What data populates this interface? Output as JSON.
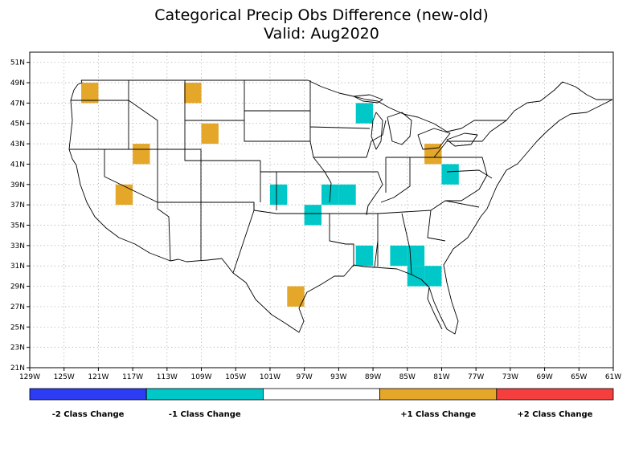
{
  "title": "Categorical Precip Obs Difference (new-old)",
  "subtitle": "Valid: Aug2020",
  "map": {
    "lon_range": [
      -129,
      -61
    ],
    "lat_range": [
      21,
      52
    ],
    "lon_ticks": [
      "129W",
      "125W",
      "121W",
      "117W",
      "113W",
      "109W",
      "105W",
      "101W",
      "97W",
      "93W",
      "89W",
      "85W",
      "81W",
      "77W",
      "73W",
      "69W",
      "65W",
      "61W"
    ],
    "lat_ticks": [
      "21N",
      "23N",
      "25N",
      "27N",
      "29N",
      "31N",
      "33N",
      "35N",
      "37N",
      "39N",
      "41N",
      "43N",
      "45N",
      "47N",
      "49N",
      "51N"
    ],
    "grid": "dotted",
    "cells": [
      {
        "lon": -122,
        "lat": 48,
        "change": 1
      },
      {
        "lon": -110,
        "lat": 48,
        "change": 1
      },
      {
        "lon": -108,
        "lat": 44,
        "change": 1
      },
      {
        "lon": -116,
        "lat": 42,
        "change": 1
      },
      {
        "lon": -118,
        "lat": 38,
        "change": 1
      },
      {
        "lon": -98,
        "lat": 28,
        "change": 1
      },
      {
        "lon": -82,
        "lat": 42,
        "change": 1
      },
      {
        "lon": -90,
        "lat": 46,
        "change": -1
      },
      {
        "lon": -80,
        "lat": 40,
        "change": -1
      },
      {
        "lon": -100,
        "lat": 38,
        "change": -1
      },
      {
        "lon": -94,
        "lat": 38,
        "change": -1
      },
      {
        "lon": -92,
        "lat": 38,
        "change": -1
      },
      {
        "lon": -96,
        "lat": 36,
        "change": -1
      },
      {
        "lon": -90,
        "lat": 32,
        "change": -1
      },
      {
        "lon": -86,
        "lat": 32,
        "change": -1
      },
      {
        "lon": -84,
        "lat": 32,
        "change": -1
      },
      {
        "lon": -84,
        "lat": 30,
        "change": -1
      },
      {
        "lon": -82,
        "lat": 30,
        "change": -1
      }
    ]
  },
  "legend": {
    "colors": {
      "-2": "#2b3cf3",
      "-1": "#00c8c8",
      "0": "#ffffff",
      "1": "#e4a72a",
      "2": "#f53e3e"
    },
    "items": [
      {
        "key": "-2",
        "label": "-2 Class Change"
      },
      {
        "key": "-1",
        "label": "-1 Class Change"
      },
      {
        "key": "0",
        "label": ""
      },
      {
        "key": "1",
        "label": "+1 Class Change"
      },
      {
        "key": "2",
        "label": "+2 Class Change"
      }
    ]
  }
}
